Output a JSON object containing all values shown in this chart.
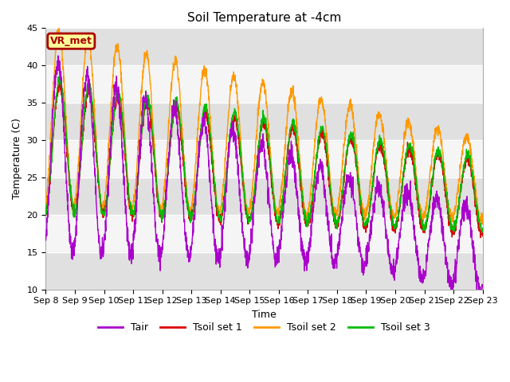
{
  "title": "Soil Temperature at -4cm",
  "xlabel": "Time",
  "ylabel": "Temperature (C)",
  "ylim": [
    10,
    45
  ],
  "n_days": 15,
  "x_tick_labels": [
    "Sep 8",
    "Sep 9",
    "Sep 10",
    "Sep 11",
    "Sep 12",
    "Sep 13",
    "Sep 14",
    "Sep 15",
    "Sep 16",
    "Sep 17",
    "Sep 18",
    "Sep 19",
    "Sep 20",
    "Sep 21",
    "Sep 22",
    "Sep 23"
  ],
  "colors": {
    "Tair": "#aa00cc",
    "Tsoil_set1": "#dd0000",
    "Tsoil_set2": "#ff9900",
    "Tsoil_set3": "#00bb00"
  },
  "legend_labels": [
    "Tair",
    "Tsoil set 1",
    "Tsoil set 2",
    "Tsoil set 3"
  ],
  "bg_gray_color": "#e0e0e0",
  "bg_light_color": "#f5f5f5",
  "vr_met_label": "VR_met",
  "vr_met_bg": "#ffff99",
  "vr_met_border": "#aa0000",
  "title_fontsize": 11,
  "axis_fontsize": 9,
  "tick_fontsize": 8,
  "legend_fontsize": 9,
  "linewidth": 1.0
}
